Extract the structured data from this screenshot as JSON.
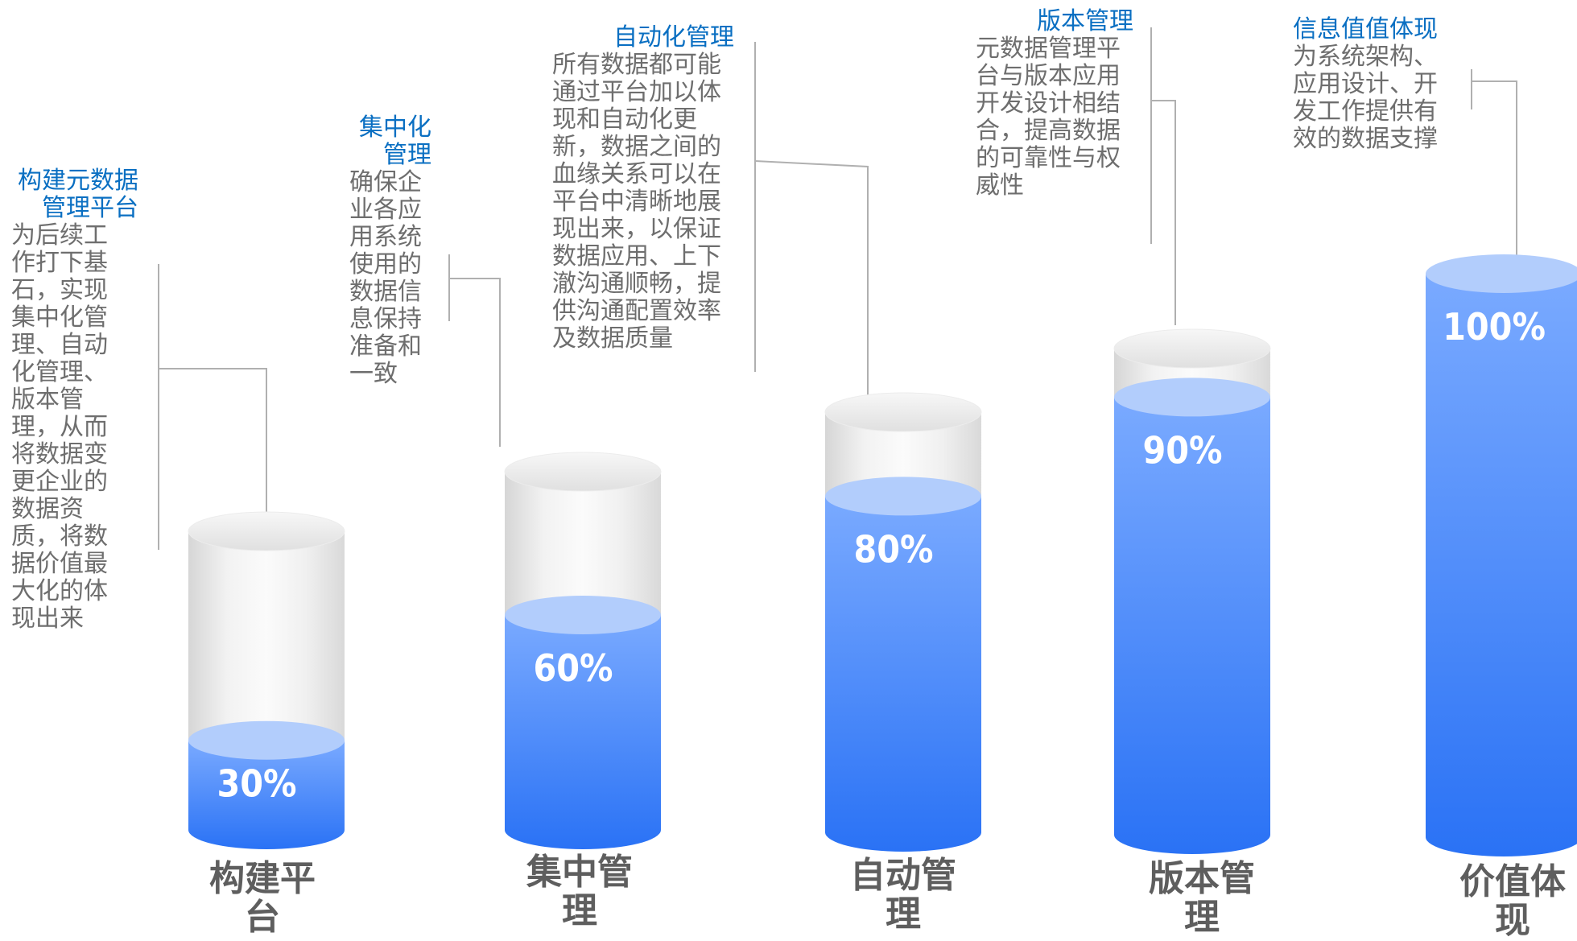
{
  "chart_data": {
    "type": "bar",
    "categories": [
      "构建平台",
      "集中管理",
      "自动管理",
      "版本管理",
      "价值体现"
    ],
    "values": [
      30,
      60,
      80,
      90,
      100
    ],
    "value_labels": [
      "30%",
      "60%",
      "80%",
      "90%",
      "100%"
    ],
    "ylim": [
      0,
      100
    ],
    "grid": false,
    "legend": "none",
    "title": "",
    "xlabel": "",
    "ylabel": ""
  },
  "annotations": [
    {
      "title": "构建元数据管理平台",
      "body": "为后续工作打下基石，实现集中化管理、自动化管理、版本管理，从而将数据变更企业的数据资质，将数据价值最大化的体现出来"
    },
    {
      "title": "集中化管理",
      "body": "确保企业各应用系统使用的数据信息保持准备和一致"
    },
    {
      "title": "自动化管理",
      "body": "所有数据都可能通过平台加以体现和自动化更新，数据之间的血缘关系可以在平台中清晰地展现出来，以保证数据应用、上下澈沟通顺畅，提供沟通配置效率及数据质量"
    },
    {
      "title": "版本管理",
      "body": "元数据管理平台与版本应用开发设计相结合，提高数据的可靠性与权威性"
    },
    {
      "title": "信息值值体现",
      "body": "为系统架构、应用设计、开发工作提供有效的数据支撑"
    }
  ],
  "colors": {
    "fill_top": "#74a7ff",
    "fill_bottom": "#2a72f5",
    "fill_cap": "#b2cdfc",
    "empty_glass": "#e4e4e4",
    "leader_line": "#b0b0b0",
    "annotation_title": "#0a6fc2",
    "annotation_body": "#6e6e6e",
    "category_label": "#5e5e5e",
    "value_label": "#ffffff"
  }
}
